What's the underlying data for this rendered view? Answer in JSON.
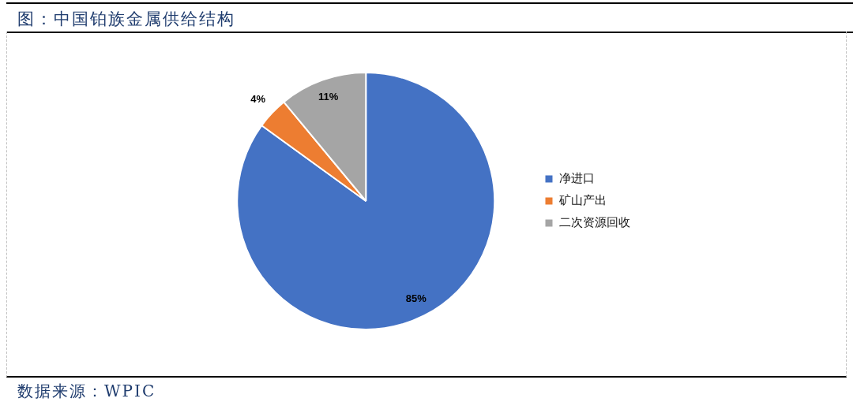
{
  "chart_data": {
    "type": "pie",
    "title": "图：中国铂族金属供给结构",
    "categories": [
      "净进口",
      "矿山产出",
      "二次资源回收"
    ],
    "values": [
      85,
      4,
      11
    ],
    "colors": [
      "#4472c4",
      "#ed7d31",
      "#a5a5a5"
    ],
    "value_labels": [
      "85%",
      "4%",
      "11%"
    ],
    "legend": "right",
    "annotations": [
      "数据来源：WPIC"
    ]
  }
}
